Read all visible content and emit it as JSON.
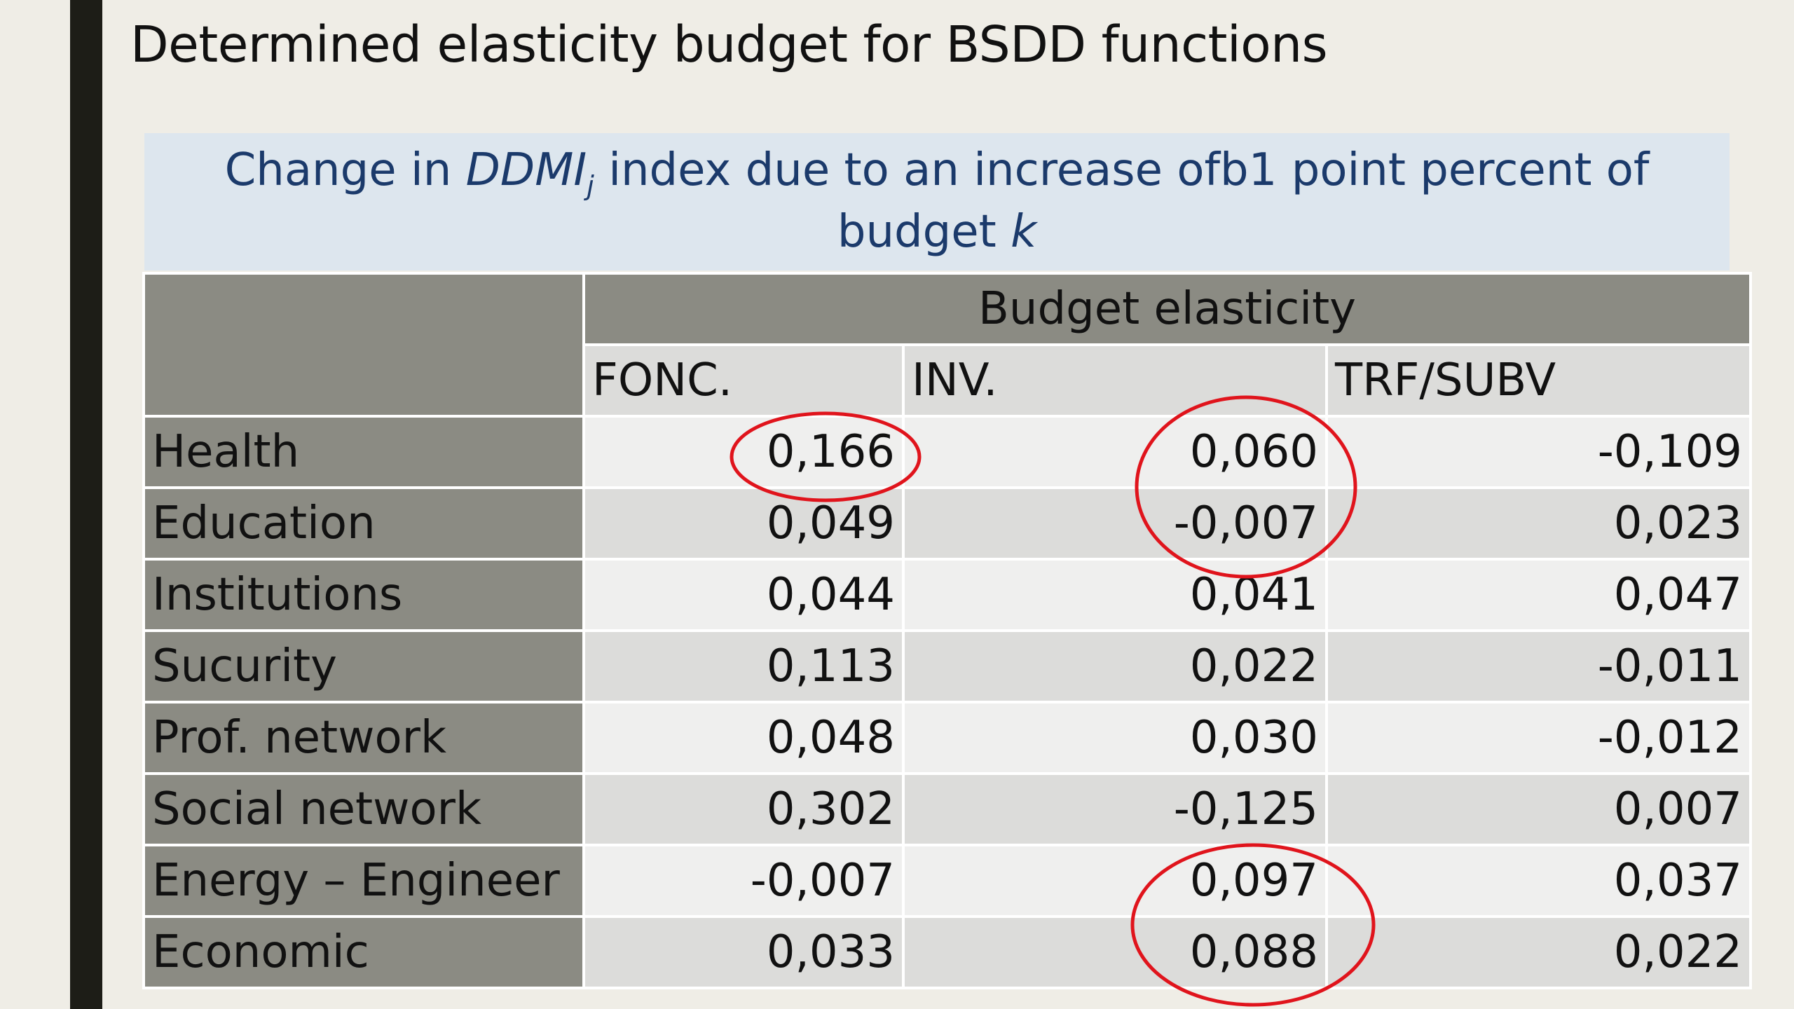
{
  "slide": {
    "title": "Determined elasticity budget for BSDD functions"
  },
  "caption": {
    "part1": "Change in ",
    "index_name": "DDMI",
    "index_subscript": "j",
    "part2": " index due to an increase ofb1 point percent of",
    "part3": "budget ",
    "budget_var": "k"
  },
  "table": {
    "group_header": "Budget elasticity",
    "columns": [
      "FONC.",
      "INV.",
      "TRF/SUBV"
    ],
    "rows": [
      {
        "label": "Health",
        "values": [
          "0,166",
          "0,060",
          "-0,109"
        ]
      },
      {
        "label": "Education",
        "values": [
          "0,049",
          "-0,007",
          "0,023"
        ]
      },
      {
        "label": "Institutions",
        "values": [
          "0,044",
          "0,041",
          "0,047"
        ]
      },
      {
        "label": "Sucurity",
        "values": [
          "0,113",
          "0,022",
          "-0,011"
        ]
      },
      {
        "label": "Prof. network",
        "values": [
          "0,048",
          "0,030",
          "-0,012"
        ]
      },
      {
        "label": "Social network",
        "values": [
          "0,302",
          "-0,125",
          "0,007"
        ]
      },
      {
        "label": "Energy – Engineer",
        "values": [
          "-0,007",
          "0,097",
          "0,037"
        ]
      },
      {
        "label": "Economic",
        "values": [
          "0,033",
          "0,088",
          "0,022"
        ]
      }
    ]
  },
  "annotations": {
    "circle_color": "#e0141c"
  }
}
